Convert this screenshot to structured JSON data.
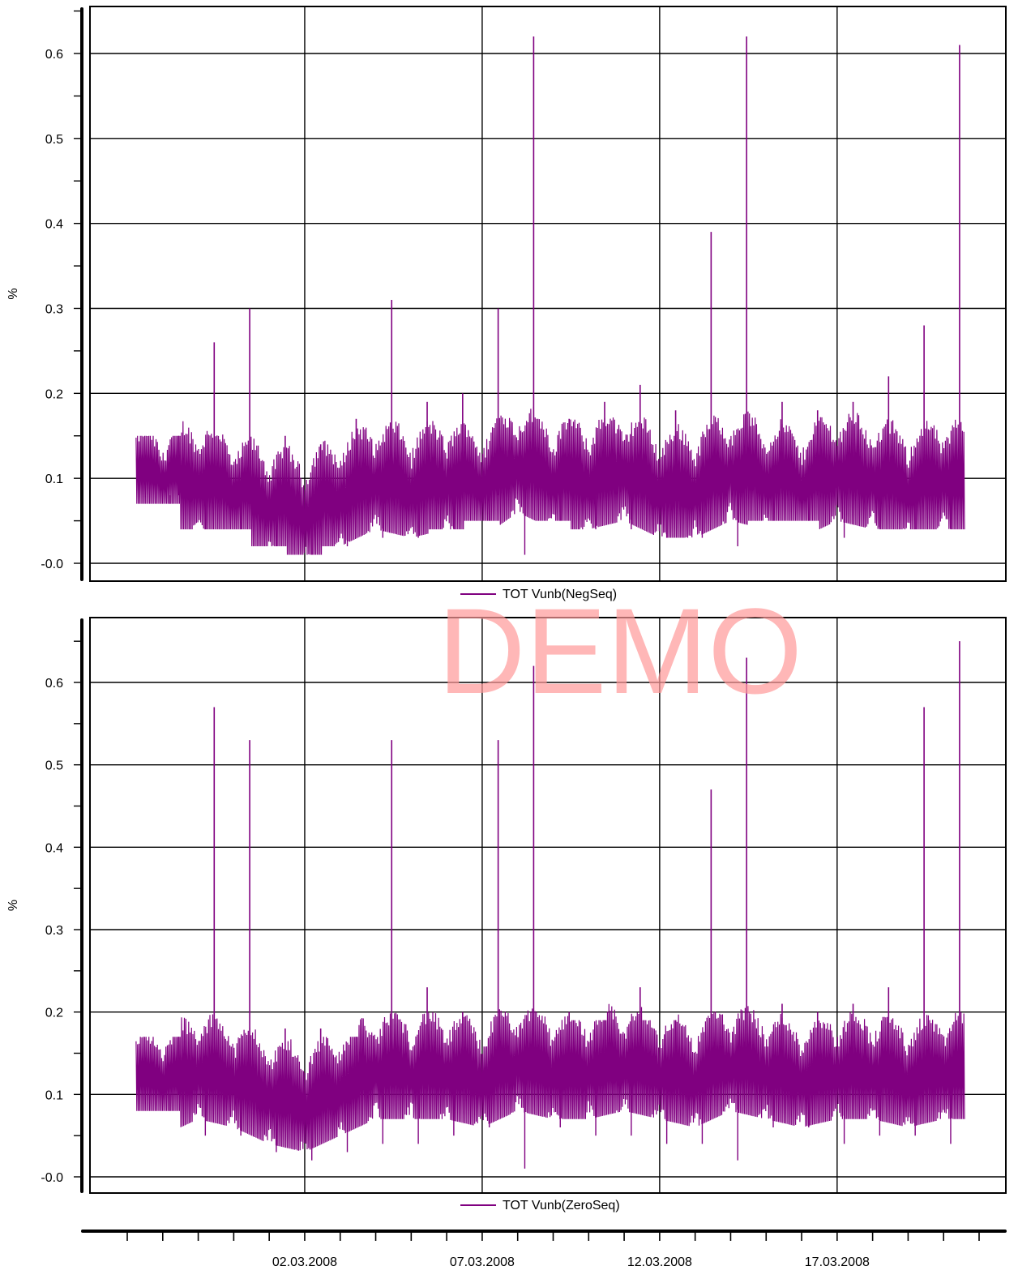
{
  "watermark": "DEMO",
  "series_color": "#800080",
  "band_color": "#e9d9ea",
  "x_axis": {
    "tick_labels": [
      "02.03.2008",
      "07.03.2008",
      "12.03.2008",
      "17.03.2008"
    ],
    "start": "2008-02-26",
    "end": "2008-03-21"
  },
  "chart_data": [
    {
      "type": "line",
      "ylabel": "%",
      "legend": "TOT Vunb(NegSeq)",
      "legend_position": "bottom-center",
      "grid": true,
      "ylim": [
        -0.02,
        0.655
      ],
      "yticks": [
        0.0,
        0.1,
        0.2,
        0.3,
        0.4,
        0.5,
        0.6
      ],
      "ytick_labels": [
        "-0.0",
        "0.1",
        "0.2",
        "0.3",
        "0.4",
        "0.5",
        "0.6"
      ],
      "series": [
        {
          "name": "TOT Vunb(NegSeq)",
          "x": [
            "2008-02-27",
            "2008-02-28",
            "2008-02-29",
            "2008-03-01",
            "2008-03-02",
            "2008-03-03",
            "2008-03-04",
            "2008-03-05",
            "2008-03-06",
            "2008-03-07",
            "2008-03-08",
            "2008-03-09",
            "2008-03-10",
            "2008-03-11",
            "2008-03-12",
            "2008-03-13",
            "2008-03-14",
            "2008-03-15",
            "2008-03-16",
            "2008-03-17",
            "2008-03-18",
            "2008-03-19",
            "2008-03-20"
          ],
          "min": [
            0.07,
            0.04,
            0.04,
            0.02,
            0.01,
            0.02,
            0.03,
            0.03,
            0.04,
            0.05,
            0.01,
            0.05,
            0.04,
            0.04,
            0.03,
            0.03,
            0.02,
            0.05,
            0.05,
            0.03,
            0.04,
            0.04,
            0.04
          ],
          "mean": [
            0.08,
            0.09,
            0.07,
            0.06,
            0.05,
            0.07,
            0.09,
            0.08,
            0.09,
            0.08,
            0.11,
            0.09,
            0.09,
            0.1,
            0.08,
            0.08,
            0.1,
            0.09,
            0.08,
            0.1,
            0.09,
            0.08,
            0.09
          ],
          "max": [
            0.15,
            0.26,
            0.3,
            0.15,
            0.14,
            0.17,
            0.31,
            0.19,
            0.2,
            0.3,
            0.62,
            0.17,
            0.19,
            0.21,
            0.18,
            0.39,
            0.62,
            0.19,
            0.18,
            0.19,
            0.22,
            0.28,
            0.61
          ]
        }
      ]
    },
    {
      "type": "line",
      "ylabel": "%",
      "legend": "TOT Vunb(ZeroSeq)",
      "legend_position": "bottom-center",
      "grid": true,
      "ylim": [
        -0.02,
        0.67
      ],
      "yticks": [
        0.0,
        0.1,
        0.2,
        0.3,
        0.4,
        0.5,
        0.6
      ],
      "ytick_labels": [
        "-0.0",
        "0.1",
        "0.2",
        "0.3",
        "0.4",
        "0.5",
        "0.6"
      ],
      "series": [
        {
          "name": "TOT Vunb(ZeroSeq)",
          "x": [
            "2008-02-27",
            "2008-02-28",
            "2008-02-29",
            "2008-03-01",
            "2008-03-02",
            "2008-03-03",
            "2008-03-04",
            "2008-03-05",
            "2008-03-06",
            "2008-03-07",
            "2008-03-08",
            "2008-03-09",
            "2008-03-10",
            "2008-03-11",
            "2008-03-12",
            "2008-03-13",
            "2008-03-14",
            "2008-03-15",
            "2008-03-16",
            "2008-03-17",
            "2008-03-18",
            "2008-03-19",
            "2008-03-20"
          ],
          "min": [
            0.08,
            0.05,
            0.05,
            0.03,
            0.02,
            0.03,
            0.04,
            0.04,
            0.05,
            0.06,
            0.01,
            0.06,
            0.05,
            0.05,
            0.04,
            0.04,
            0.02,
            0.06,
            0.06,
            0.04,
            0.05,
            0.05,
            0.04
          ],
          "mean": [
            0.1,
            0.12,
            0.11,
            0.09,
            0.08,
            0.1,
            0.12,
            0.12,
            0.12,
            0.11,
            0.13,
            0.12,
            0.12,
            0.13,
            0.12,
            0.11,
            0.13,
            0.12,
            0.11,
            0.12,
            0.12,
            0.11,
            0.12
          ],
          "max": [
            0.17,
            0.57,
            0.53,
            0.18,
            0.18,
            0.17,
            0.53,
            0.23,
            0.2,
            0.53,
            0.62,
            0.2,
            0.19,
            0.23,
            0.19,
            0.47,
            0.63,
            0.21,
            0.2,
            0.21,
            0.23,
            0.57,
            0.65
          ]
        }
      ]
    }
  ]
}
